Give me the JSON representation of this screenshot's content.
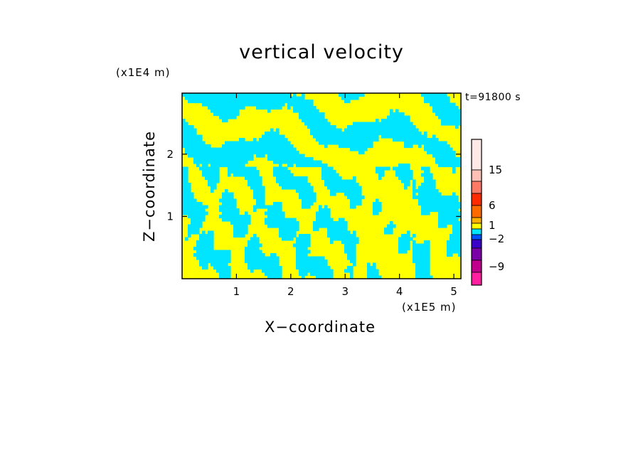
{
  "chart_data": {
    "type": "heatmap",
    "title": "vertical velocity",
    "xlabel": "X−coordinate",
    "ylabel": "Z−coordinate",
    "x_unit": "(x1E5 m)",
    "z_unit": "(x1E4 m)",
    "time_label": "t=91800 s",
    "xlim": [
      0,
      5.13
    ],
    "ylim": [
      0,
      2.98
    ],
    "x_ticks": [
      "1",
      "2",
      "3",
      "4",
      "5"
    ],
    "y_ticks": [
      "1",
      "2"
    ],
    "x_tick_values": [
      1,
      2,
      3,
      4,
      5
    ],
    "y_tick_values": [
      1,
      2
    ],
    "dominant_fill_colors": [
      "#ffff00",
      "#00e5ff"
    ],
    "colorbar": {
      "labels": [
        "15",
        "6",
        "1",
        "−2",
        "−9"
      ],
      "label_values": [
        15,
        6,
        1,
        -2,
        -9
      ],
      "levels": [
        {
          "color": "#ffe9e6"
        },
        {
          "color": "#ffc0b5"
        },
        {
          "color": "#ff7a66"
        },
        {
          "color": "#ff2a00"
        },
        {
          "color": "#ff6a00"
        },
        {
          "color": "#ffb000"
        },
        {
          "color": "#ffff00"
        },
        {
          "color": "#00e5ff"
        },
        {
          "color": "#0050ff"
        },
        {
          "color": "#3a00c8"
        },
        {
          "color": "#7a00a8"
        },
        {
          "color": "#c0008c"
        },
        {
          "color": "#ff20a0"
        }
      ]
    }
  }
}
